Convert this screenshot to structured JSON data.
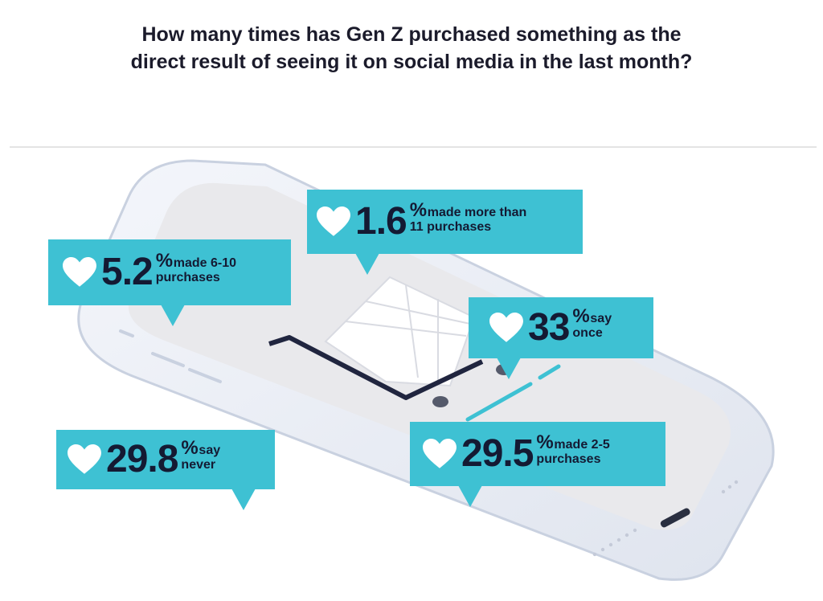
{
  "title_lines": [
    "How many times has Gen Z purchased something as the",
    "direct result of seeing it on social media in the last month?"
  ],
  "colors": {
    "callout": "#3ec1d3",
    "text": "#141a33",
    "heart": "#ffffff"
  },
  "icon": "heart-icon",
  "chart_data": {
    "type": "table",
    "unit": "%",
    "items": [
      {
        "value": 1.6,
        "value_text": "1.6",
        "label_lines": [
          "made more than",
          "11 purchases"
        ]
      },
      {
        "value": 5.2,
        "value_text": "5.2",
        "label_lines": [
          "made 6-10",
          "purchases"
        ]
      },
      {
        "value": 33,
        "value_text": "33",
        "label_lines": [
          "say",
          "once"
        ]
      },
      {
        "value": 29.8,
        "value_text": "29.8",
        "label_lines": [
          "say",
          "never"
        ]
      },
      {
        "value": 29.5,
        "value_text": "29.5",
        "label_lines": [
          "made 2-5",
          "purchases"
        ]
      }
    ]
  }
}
